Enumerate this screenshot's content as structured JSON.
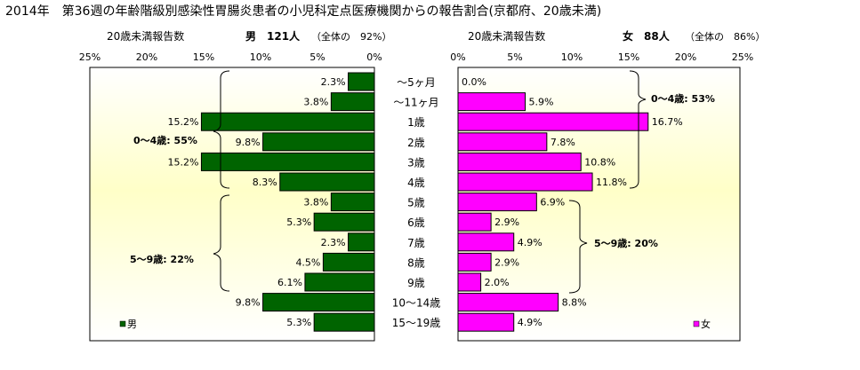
{
  "title": "2014年　第36週の年齢階級別感染性胃腸炎患者の小児科定点医療機関からの報告割合(京都府、20歳未満)",
  "age_groups": [
    "～5ヶ月",
    "～11ヶ月",
    "1歳",
    "2歳",
    "3歳",
    "4歳",
    "5歳",
    "6歳",
    "7歳",
    "8歳",
    "9歳",
    "10～14歳",
    "15～19歳"
  ],
  "male_panel": {
    "subtitle_left": "20歳未満報告数",
    "subtitle_main": "男　121人",
    "subtitle_share": "（全体の　92%）",
    "legend": "男",
    "bracket_young": "0～4歳: 55%",
    "bracket_school": "5～9歳: 22%"
  },
  "female_panel": {
    "subtitle_left": "20歳未満報告数",
    "subtitle_main": "女　88人",
    "subtitle_share": "（全体の　86%）",
    "legend": "女",
    "bracket_young": "0～4歳: 53%",
    "bracket_school": "5～9歳: 20%"
  },
  "chart_data": {
    "type": "bar",
    "orientation": "horizontal",
    "categories": [
      "～5ヶ月",
      "～11ヶ月",
      "1歳",
      "2歳",
      "3歳",
      "4歳",
      "5歳",
      "6歳",
      "7歳",
      "8歳",
      "9歳",
      "10～14歳",
      "15～19歳"
    ],
    "axis_ticks": [
      "0%",
      "5%",
      "10%",
      "15%",
      "20%",
      "25%"
    ],
    "xlim": [
      0,
      25
    ],
    "series": [
      {
        "name": "男",
        "color": "#006400",
        "values": [
          2.3,
          3.8,
          15.2,
          9.8,
          15.2,
          8.3,
          3.8,
          5.3,
          2.3,
          4.5,
          6.1,
          9.8,
          5.3
        ],
        "labels": [
          "2.3%",
          "3.8%",
          "15.2%",
          "9.8%",
          "15.2%",
          "8.3%",
          "3.8%",
          "5.3%",
          "2.3%",
          "4.5%",
          "6.1%",
          "9.8%",
          "5.3%"
        ]
      },
      {
        "name": "女",
        "color": "#ff00ff",
        "values": [
          0.0,
          5.9,
          16.7,
          7.8,
          10.8,
          11.8,
          6.9,
          2.9,
          4.9,
          2.9,
          2.0,
          8.8,
          4.9
        ],
        "labels": [
          "0.0%",
          "5.9%",
          "16.7%",
          "7.8%",
          "10.8%",
          "11.8%",
          "6.9%",
          "2.9%",
          "4.9%",
          "2.9%",
          "2.0%",
          "8.8%",
          "4.9%"
        ]
      }
    ],
    "plot_background": "#ffffc8",
    "grid": false
  }
}
